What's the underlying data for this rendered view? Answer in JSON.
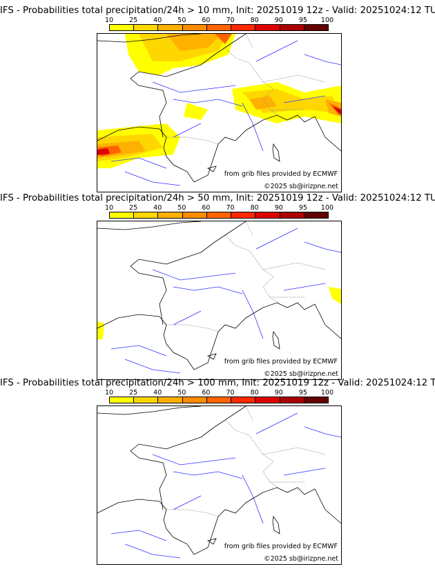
{
  "panels": [
    {
      "title": "IFS - Probabilities total precipitation/24h > 10 mm, Init: 20251019 12z - Valid: 20251024:12 TU",
      "threshold_mm": 10
    },
    {
      "title": "IFS - Probabilities total precipitation/24h > 50 mm, Init: 20251019 12z - Valid: 20251024:12 TU",
      "threshold_mm": 50
    },
    {
      "title": "IFS - Probabilities total precipitation/24h > 100 mm, Init: 20251019 12z - Valid: 20251024:12 TU",
      "threshold_mm": 100
    }
  ],
  "colorbar": {
    "ticks": [
      "10",
      "25",
      "40",
      "50",
      "60",
      "70",
      "80",
      "90",
      "95",
      "100"
    ],
    "colors": [
      "#ffff00",
      "#ffd700",
      "#ffb000",
      "#ff8c00",
      "#ff6400",
      "#ff2800",
      "#dc0000",
      "#aa0000",
      "#640000"
    ]
  },
  "credits": {
    "source": "from grib files provided by ECMWF",
    "copyright": "©2025 sb@irizpne.net"
  }
}
